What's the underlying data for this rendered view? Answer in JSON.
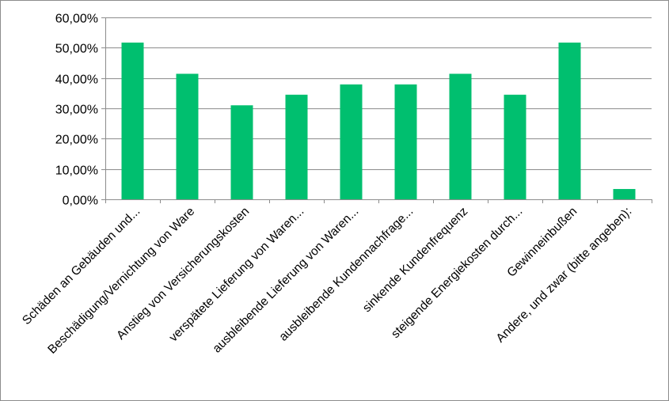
{
  "chart_data": {
    "type": "bar",
    "title": "",
    "xlabel": "",
    "ylabel": "",
    "ylim": [
      0,
      0.6
    ],
    "grid": true,
    "bar_color": "#00bf6f",
    "grid_color": "#8c8c8c",
    "y_ticks": [
      {
        "value": 0.0,
        "label": "0,00%"
      },
      {
        "value": 0.1,
        "label": "10,00%"
      },
      {
        "value": 0.2,
        "label": "20,00%"
      },
      {
        "value": 0.3,
        "label": "30,00%"
      },
      {
        "value": 0.4,
        "label": "40,00%"
      },
      {
        "value": 0.5,
        "label": "50,00%"
      },
      {
        "value": 0.6,
        "label": "60,00%"
      }
    ],
    "categories": [
      "Schäden an Gebäuden und...",
      "Beschädigung/Vernichtung von Ware",
      "Anstieg von Versicherungskosten",
      "verspätete Lieferung von Waren...",
      "ausbleibende Lieferung von Waren...",
      "ausbleibende Kundennachfrage...",
      "sinkende Kundenfrequenz",
      "steigende Energiekosten durch...",
      "Gewinneinbußen",
      "Andere, und zwar (bitte angeben):"
    ],
    "values": [
      0.517,
      0.414,
      0.31,
      0.345,
      0.379,
      0.379,
      0.414,
      0.345,
      0.517,
      0.034
    ]
  }
}
